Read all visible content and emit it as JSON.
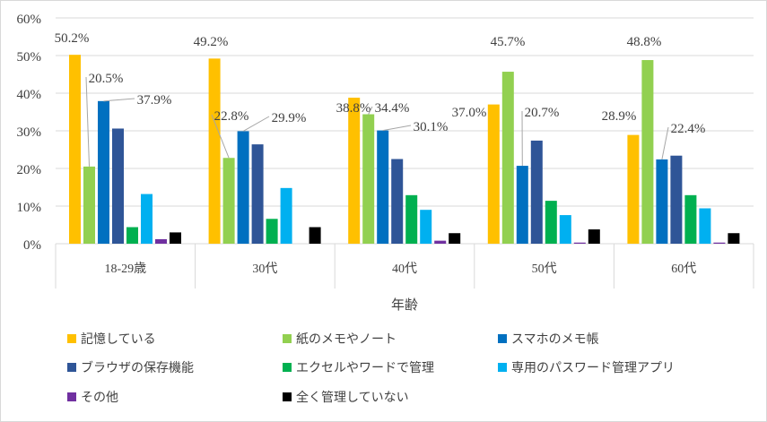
{
  "chart_data": {
    "type": "bar",
    "title": "",
    "xlabel": "年齢",
    "ylabel": "",
    "ylim": [
      0,
      60
    ],
    "yticks": [
      "0%",
      "10%",
      "20%",
      "30%",
      "40%",
      "50%",
      "60%"
    ],
    "grid": true,
    "legend_position": "bottom",
    "categories": [
      "18-29歳",
      "30代",
      "40代",
      "50代",
      "60代"
    ],
    "series": [
      {
        "name": "記憶している",
        "color": "#FFC000",
        "values": [
          50.2,
          49.2,
          38.8,
          37.0,
          28.9
        ]
      },
      {
        "name": "紙のメモやノート",
        "color": "#92D050",
        "values": [
          20.5,
          22.8,
          34.4,
          45.7,
          48.8
        ]
      },
      {
        "name": "スマホのメモ帳",
        "color": "#0070C0",
        "values": [
          37.9,
          29.9,
          30.1,
          20.7,
          22.4
        ]
      },
      {
        "name": "ブラウザの保存機能",
        "color": "#2F5597",
        "values": [
          30.6,
          26.4,
          22.5,
          27.4,
          23.4
        ]
      },
      {
        "name": "エクセルやワードで管理",
        "color": "#00B050",
        "values": [
          4.4,
          6.6,
          12.9,
          11.4,
          12.9
        ]
      },
      {
        "name": "専用のパスワード管理アプリ",
        "color": "#00B0F0",
        "values": [
          13.2,
          14.8,
          9.0,
          7.6,
          9.4
        ]
      },
      {
        "name": "その他",
        "color": "#7030A0",
        "values": [
          1.2,
          0.0,
          0.8,
          0.3,
          0.3
        ]
      },
      {
        "name": "全く管理していない",
        "color": "#000000",
        "values": [
          3.0,
          4.4,
          2.8,
          3.8,
          2.8
        ]
      }
    ],
    "data_labels": [
      {
        "category": 0,
        "series": 0,
        "text": "50.2%"
      },
      {
        "category": 0,
        "series": 1,
        "text": "20.5%"
      },
      {
        "category": 0,
        "series": 2,
        "text": "37.9%"
      },
      {
        "category": 1,
        "series": 0,
        "text": "49.2%"
      },
      {
        "category": 1,
        "series": 1,
        "text": "22.8%"
      },
      {
        "category": 1,
        "series": 2,
        "text": "29.9%"
      },
      {
        "category": 2,
        "series": 0,
        "text": "38.8%"
      },
      {
        "category": 2,
        "series": 1,
        "text": "34.4%"
      },
      {
        "category": 2,
        "series": 2,
        "text": "30.1%"
      },
      {
        "category": 3,
        "series": 0,
        "text": "37.0%"
      },
      {
        "category": 3,
        "series": 1,
        "text": "45.7%"
      },
      {
        "category": 3,
        "series": 2,
        "text": "20.7%"
      },
      {
        "category": 4,
        "series": 0,
        "text": "28.9%"
      },
      {
        "category": 4,
        "series": 1,
        "text": "48.8%"
      },
      {
        "category": 4,
        "series": 2,
        "text": "22.4%"
      }
    ]
  }
}
